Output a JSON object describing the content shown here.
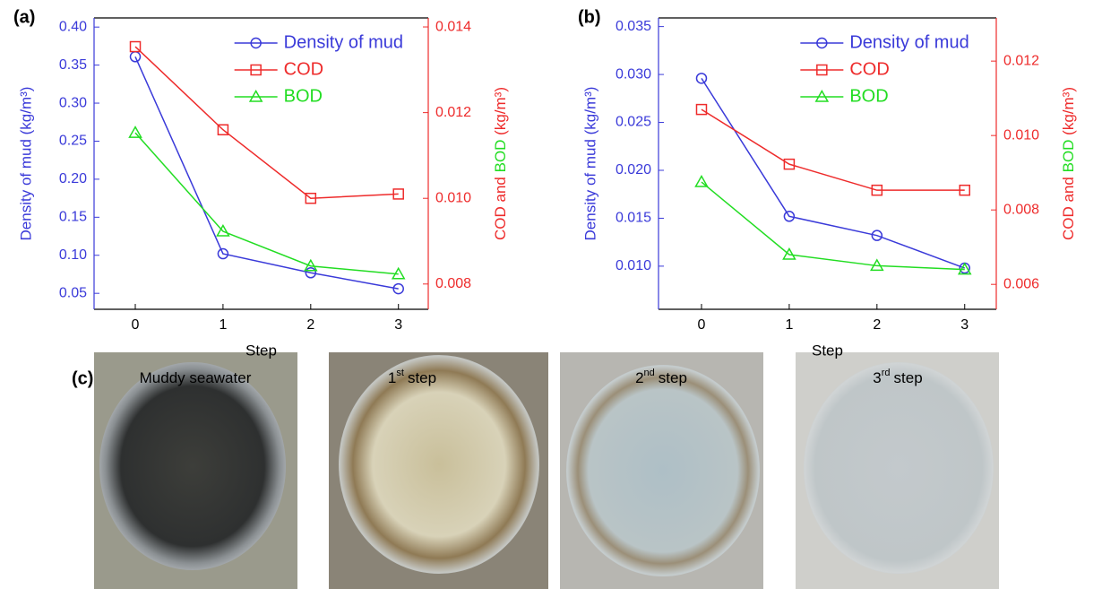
{
  "chart_data": [
    {
      "type": "line",
      "panel": "(a)",
      "xlabel": "Step",
      "ylabel": "Density of mud (kg/m³)",
      "y2label": [
        {
          "text": "COD",
          "color": "#ee2b2b"
        },
        {
          "text": " and ",
          "color": "#ee2b2b"
        },
        {
          "text": "BOD",
          "color": "#22dd22"
        },
        {
          "text": " (kg/m³)",
          "color": "#ee2b2b"
        }
      ],
      "x": [
        0,
        1,
        2,
        3
      ],
      "xlim": [
        -0.47,
        3.34
      ],
      "xticks": [
        0,
        1,
        2,
        3
      ],
      "ylim": [
        0.029,
        0.412
      ],
      "yticks": [
        0.05,
        {
          "value": 0.1,
          "label": "0.10"
        },
        0.15,
        {
          "value": 0.2,
          "label": "0.20"
        },
        0.25,
        {
          "value": 0.3,
          "label": "0.30"
        },
        0.35,
        {
          "value": 0.4,
          "label": "0.40"
        }
      ],
      "y2lim": [
        0.00741,
        0.01421
      ],
      "y2ticks": [
        0.008,
        {
          "value": 0.01,
          "label": "0.010"
        },
        0.012,
        0.014
      ],
      "ycolor": "#3a3ad9",
      "y2color": "#ee2b2b",
      "legend": "upper right",
      "series": [
        {
          "name": "Density of mud",
          "color": "#3a3ad9",
          "marker": "circle",
          "values": [
            0.361,
            0.102,
            0.077,
            0.056
          ]
        },
        {
          "name": "COD",
          "color": "#ee2b2b",
          "marker": "square",
          "axis": "y2",
          "values": [
            0.01354,
            0.0116,
            0.01,
            0.0101
          ]
        },
        {
          "name": "BOD",
          "color": "#22dd22",
          "marker": "triangle",
          "axis": "y2",
          "values": [
            0.01153,
            0.00923,
            0.00842,
            0.00823
          ]
        }
      ]
    },
    {
      "type": "line",
      "panel": "(b)",
      "xlabel": "Step",
      "ylabel": "Density of mud (kg/m³)",
      "y2label": [
        {
          "text": "COD",
          "color": "#ee2b2b"
        },
        {
          "text": " and ",
          "color": "#ee2b2b"
        },
        {
          "text": "BOD",
          "color": "#22dd22"
        },
        {
          "text": " (kg/m³)",
          "color": "#ee2b2b"
        }
      ],
      "x": [
        0,
        1,
        2,
        3
      ],
      "xlim": [
        -0.49,
        3.36
      ],
      "xticks": [
        0,
        1,
        2,
        3
      ],
      "ylim": [
        0.0055,
        0.0359
      ],
      "yticks": [
        {
          "value": 0.01,
          "label": "0.010"
        },
        0.015,
        {
          "value": 0.02,
          "label": "0.020"
        },
        0.025,
        {
          "value": 0.03,
          "label": "0.030"
        },
        0.035
      ],
      "y2lim": [
        0.00533,
        0.01316
      ],
      "y2ticks": [
        0.006,
        0.008,
        {
          "value": 0.01,
          "label": "0.010"
        },
        0.012
      ],
      "ycolor": "#3a3ad9",
      "y2color": "#ee2b2b",
      "legend": "upper right",
      "series": [
        {
          "name": "Density of mud",
          "color": "#3a3ad9",
          "marker": "circle",
          "values": [
            0.0296,
            0.0152,
            0.0132,
            0.0098
          ]
        },
        {
          "name": "COD",
          "color": "#ee2b2b",
          "marker": "square",
          "axis": "y2",
          "values": [
            0.0107,
            0.00923,
            0.00853,
            0.00853
          ]
        },
        {
          "name": "BOD",
          "color": "#22dd22",
          "marker": "triangle",
          "axis": "y2",
          "values": [
            0.00875,
            0.0068,
            0.0065,
            0.0064
          ]
        }
      ]
    }
  ],
  "panel_c": {
    "label": "(c)",
    "photos": [
      {
        "base": "Muddy seawater"
      },
      {
        "base": "1",
        "sup": "st",
        "rest": "step"
      },
      {
        "base": "2",
        "sup": "nd",
        "rest": "step"
      },
      {
        "base": "3",
        "sup": "rd",
        "rest": "step"
      }
    ]
  }
}
